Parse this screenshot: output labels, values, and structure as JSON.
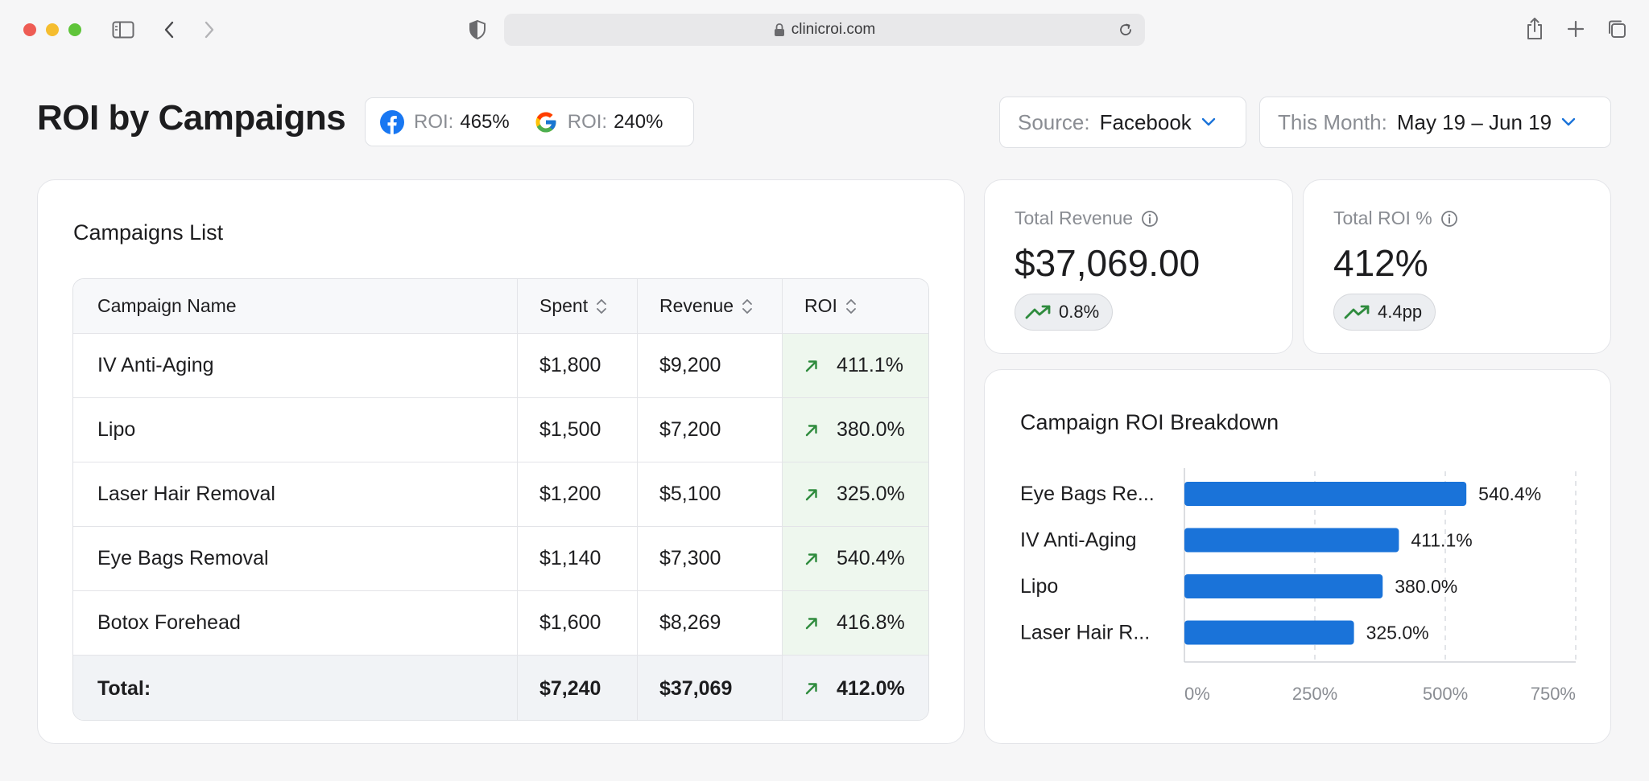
{
  "browser": {
    "url": "clinicroi.com"
  },
  "header": {
    "title": "ROI by Campaigns",
    "roi_summary": [
      {
        "icon": "facebook-icon",
        "label": "ROI:",
        "value": "465%"
      },
      {
        "icon": "google-icon",
        "label": "ROI:",
        "value": "240%"
      }
    ],
    "source_filter": {
      "label": "Source:",
      "value": "Facebook"
    },
    "date_filter": {
      "label": "This Month:",
      "value": "May 19 – Jun 19"
    }
  },
  "campaigns": {
    "title": "Campaigns List",
    "columns": [
      "Campaign Name",
      "Spent",
      "Revenue",
      "ROI"
    ],
    "rows": [
      {
        "name": "IV Anti-Aging",
        "spent": "$1,800",
        "revenue": "$9,200",
        "roi": "411.1%"
      },
      {
        "name": "Lipo",
        "spent": "$1,500",
        "revenue": "$7,200",
        "roi": "380.0%"
      },
      {
        "name": "Laser Hair Removal",
        "spent": "$1,200",
        "revenue": "$5,100",
        "roi": "325.0%"
      },
      {
        "name": "Eye Bags Removal",
        "spent": "$1,140",
        "revenue": "$7,300",
        "roi": "540.4%"
      },
      {
        "name": "Botox Forehead",
        "spent": "$1,600",
        "revenue": "$8,269",
        "roi": "416.8%"
      }
    ],
    "total": {
      "name": "Total:",
      "spent": "$7,240",
      "revenue": "$37,069",
      "roi": "412.0%"
    }
  },
  "stats": {
    "revenue": {
      "label": "Total Revenue",
      "value": "$37,069.00",
      "trend": "0.8%"
    },
    "roi": {
      "label": "Total ROI %",
      "value": "412%",
      "trend": "4.4pp"
    }
  },
  "colors": {
    "bar": "#1a73d9",
    "trend_green": "#2e8b3d",
    "roi_cell_bg": "#eef7ee"
  },
  "chart_data": {
    "type": "bar",
    "orientation": "horizontal",
    "title": "Campaign ROI Breakdown",
    "categories": [
      "Eye Bags Re...",
      "IV Anti-Aging",
      "Lipo",
      "Laser Hair R..."
    ],
    "values": [
      540.4,
      411.1,
      380.0,
      325.0
    ],
    "value_labels": [
      "540.4%",
      "411.1%",
      "380.0%",
      "325.0%"
    ],
    "xlim": [
      0,
      750
    ],
    "x_ticks": [
      0,
      250,
      500,
      750
    ],
    "x_tick_labels": [
      "0%",
      "250%",
      "500%",
      "750%"
    ],
    "grid": true,
    "xlabel": "",
    "ylabel": ""
  }
}
